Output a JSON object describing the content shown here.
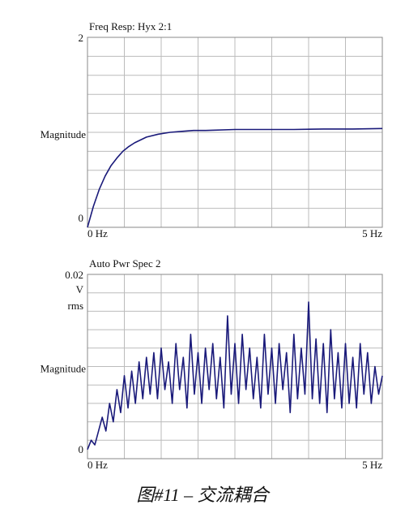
{
  "chart_data": [
    {
      "type": "line",
      "title": "Freq Resp: Hyx 2:1",
      "ylabel": "Magnitude",
      "xlim": [
        0,
        5
      ],
      "xticks": [
        {
          "value": 0,
          "label": "0  Hz"
        },
        {
          "value": 5,
          "label": "5 Hz"
        }
      ],
      "ylim": [
        0,
        2
      ],
      "yticks": [
        0,
        2
      ],
      "grid": true,
      "series": [
        {
          "color": "#1a1a7a",
          "x": [
            0,
            0.1,
            0.2,
            0.3,
            0.4,
            0.5,
            0.6,
            0.7,
            0.8,
            0.9,
            1.0,
            1.2,
            1.4,
            1.6,
            1.8,
            2.0,
            2.5,
            3.0,
            3.5,
            4.0,
            4.5,
            5.0
          ],
          "values": [
            0,
            0.22,
            0.4,
            0.54,
            0.65,
            0.73,
            0.8,
            0.85,
            0.89,
            0.92,
            0.95,
            0.98,
            1.0,
            1.01,
            1.02,
            1.02,
            1.03,
            1.03,
            1.03,
            1.035,
            1.035,
            1.04
          ]
        }
      ]
    },
    {
      "type": "line",
      "title": "Auto Pwr Spec 2",
      "ylabel": "Magnitude",
      "y_unit": [
        "V",
        "rms"
      ],
      "xlim": [
        0,
        5
      ],
      "xticks": [
        {
          "value": 0,
          "label": "0  Hz"
        },
        {
          "value": 5,
          "label": "5 Hz"
        }
      ],
      "ylim": [
        0,
        0.02
      ],
      "yticks": [
        0,
        0.02
      ],
      "grid": true,
      "series": [
        {
          "color": "#1a1a7a",
          "x": [
            0,
            0.0625,
            0.125,
            0.1875,
            0.25,
            0.3125,
            0.375,
            0.4375,
            0.5,
            0.5625,
            0.625,
            0.6875,
            0.75,
            0.8125,
            0.875,
            0.9375,
            1.0,
            1.0625,
            1.125,
            1.1875,
            1.25,
            1.3125,
            1.375,
            1.4375,
            1.5,
            1.5625,
            1.625,
            1.6875,
            1.75,
            1.8125,
            1.875,
            1.9375,
            2.0,
            2.0625,
            2.125,
            2.1875,
            2.25,
            2.3125,
            2.375,
            2.4375,
            2.5,
            2.5625,
            2.625,
            2.6875,
            2.75,
            2.8125,
            2.875,
            2.9375,
            3.0,
            3.0625,
            3.125,
            3.1875,
            3.25,
            3.3125,
            3.375,
            3.4375,
            3.5,
            3.5625,
            3.625,
            3.6875,
            3.75,
            3.8125,
            3.875,
            3.9375,
            4.0,
            4.0625,
            4.125,
            4.1875,
            4.25,
            4.3125,
            4.375,
            4.4375,
            4.5,
            4.5625,
            4.625,
            4.6875,
            4.75,
            4.8125,
            4.875,
            4.9375,
            5.0
          ],
          "values": [
            0.001,
            0.002,
            0.0015,
            0.003,
            0.0045,
            0.003,
            0.006,
            0.004,
            0.0075,
            0.005,
            0.009,
            0.0055,
            0.0095,
            0.006,
            0.0105,
            0.0065,
            0.011,
            0.007,
            0.0115,
            0.0065,
            0.012,
            0.0075,
            0.0105,
            0.006,
            0.0125,
            0.0075,
            0.011,
            0.0055,
            0.0135,
            0.007,
            0.0115,
            0.006,
            0.012,
            0.0075,
            0.0125,
            0.0065,
            0.011,
            0.0055,
            0.0155,
            0.007,
            0.0125,
            0.006,
            0.0135,
            0.0075,
            0.012,
            0.0065,
            0.011,
            0.0055,
            0.0135,
            0.007,
            0.012,
            0.006,
            0.0125,
            0.0075,
            0.0115,
            0.005,
            0.0135,
            0.0065,
            0.012,
            0.007,
            0.017,
            0.0065,
            0.013,
            0.006,
            0.0125,
            0.005,
            0.014,
            0.0065,
            0.0115,
            0.0055,
            0.0125,
            0.006,
            0.011,
            0.0055,
            0.0125,
            0.007,
            0.0115,
            0.006,
            0.01,
            0.007,
            0.009
          ]
        }
      ]
    }
  ],
  "caption": "图#11 – 交流耦合"
}
